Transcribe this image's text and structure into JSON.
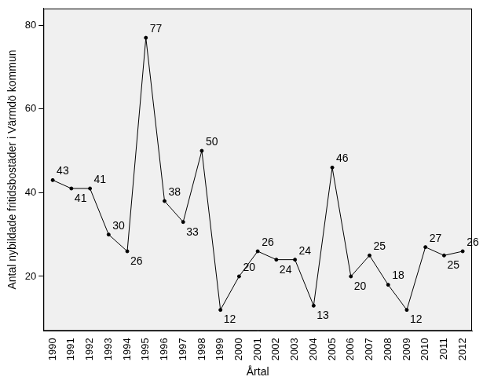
{
  "chart_data": {
    "type": "line",
    "x_label": "Årtal",
    "y_label": "Antal nybildade fritidsbostäder i Värmdö kommun",
    "categories": [
      "1990",
      "1991",
      "1992",
      "1993",
      "1994",
      "1995",
      "1996",
      "1997",
      "1998",
      "1999",
      "2000",
      "2001",
      "2002",
      "2003",
      "2004",
      "2005",
      "2006",
      "2007",
      "2008",
      "2009",
      "2010",
      "2011",
      "2012"
    ],
    "values": [
      43,
      41,
      41,
      30,
      26,
      77,
      38,
      33,
      50,
      12,
      20,
      26,
      24,
      24,
      13,
      46,
      20,
      25,
      18,
      12,
      27,
      25,
      26
    ],
    "color": "#000000",
    "marker": "circle",
    "ylim": [
      7,
      84
    ],
    "yticks": [
      20,
      40,
      60,
      80
    ],
    "grid": false,
    "data_labels": true
  }
}
